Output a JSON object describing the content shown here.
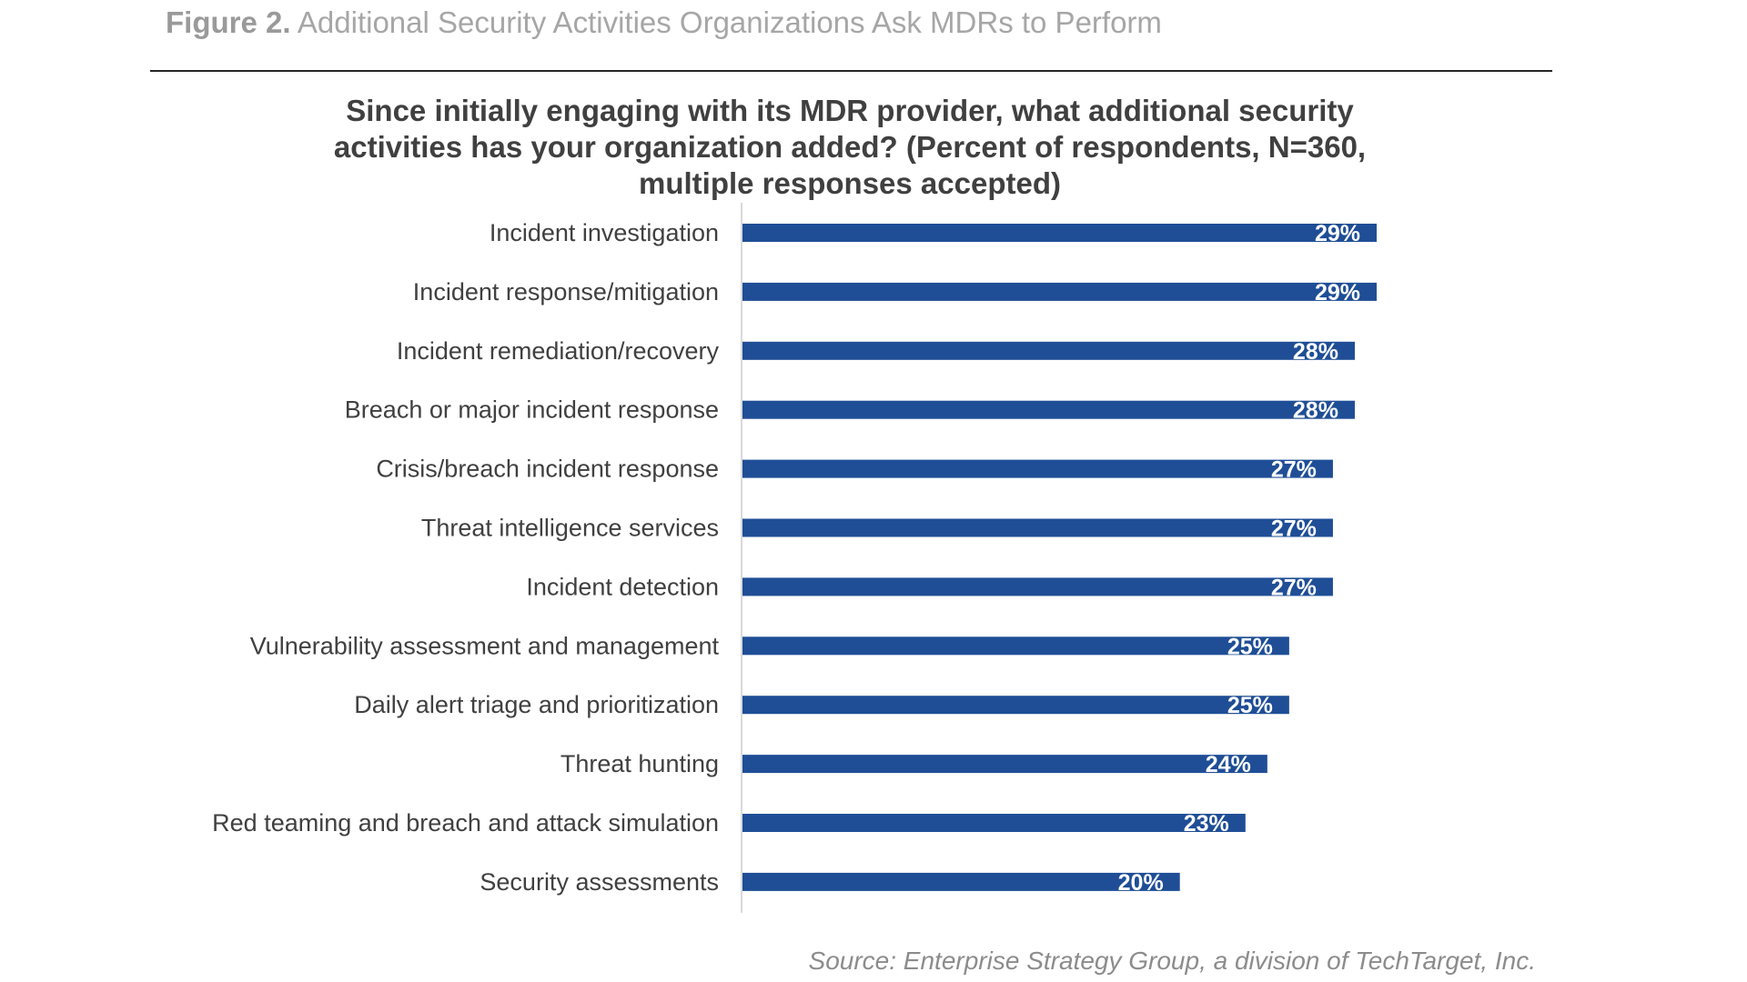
{
  "caption": {
    "label": "Figure 2.",
    "text": "Additional Security Activities Organizations Ask MDRs to Perform"
  },
  "source": "Source: Enterprise Strategy Group, a division of TechTarget, Inc.",
  "colors": {
    "bar": "#1f4e96",
    "bar_label": "#ffffff",
    "category_label": "#404040",
    "axis": "#d9d9d9"
  },
  "chart_data": {
    "type": "bar",
    "orientation": "horizontal",
    "title_lines": [
      "Since initially engaging with its MDR provider, what additional security",
      "activities has your organization added? (Percent of respondents, N=360,",
      "multiple responses accepted)"
    ],
    "categories": [
      "Incident investigation",
      "Incident response/mitigation",
      "Incident remediation/recovery",
      "Breach or major incident response",
      "Crisis/breach incident response",
      "Threat intelligence services",
      "Incident detection",
      "Vulnerability assessment and management",
      "Daily alert triage and prioritization",
      "Threat hunting",
      "Red teaming and breach and attack simulation",
      "Security assessments"
    ],
    "values": [
      29,
      29,
      28,
      28,
      27,
      27,
      27,
      25,
      25,
      24,
      23,
      20
    ],
    "value_suffix": "%",
    "xlim": [
      0,
      29
    ],
    "grid": false,
    "legend": "none"
  }
}
